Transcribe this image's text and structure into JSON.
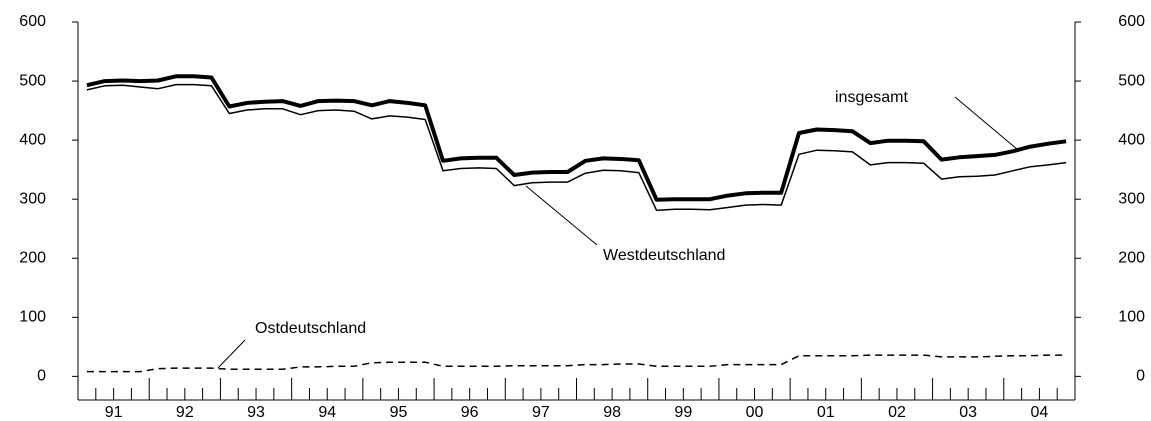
{
  "chart_data": {
    "type": "line",
    "categories": [
      null,
      "91",
      null,
      null,
      null,
      "92",
      null,
      null,
      null,
      "93",
      null,
      null,
      null,
      "94",
      null,
      null,
      null,
      "95",
      null,
      null,
      null,
      "96",
      null,
      null,
      null,
      "97",
      null,
      null,
      null,
      "98",
      null,
      null,
      null,
      "99",
      null,
      null,
      null,
      "00",
      null,
      null,
      null,
      "01",
      null,
      null,
      null,
      "02",
      null,
      null,
      null,
      "03",
      null,
      null,
      null,
      "04",
      null,
      null
    ],
    "series": [
      {
        "name": "insgesamt",
        "color": "#000000",
        "values": [
          493,
          500,
          501,
          500,
          501,
          508,
          508,
          506,
          457,
          463,
          465,
          466,
          458,
          466,
          467,
          466,
          459,
          466,
          463,
          459,
          365,
          369,
          370,
          370,
          341,
          345,
          346,
          346,
          365,
          369,
          368,
          366,
          299,
          300,
          300,
          300,
          306,
          310,
          311,
          311,
          412,
          418,
          417,
          415,
          395,
          399,
          399,
          398,
          367,
          371,
          373,
          375,
          381,
          389,
          394,
          398
        ]
      },
      {
        "name": "Westdeutschland",
        "color": "#000000",
        "values": [
          485,
          492,
          493,
          490,
          487,
          494,
          494,
          492,
          445,
          451,
          453,
          453,
          443,
          450,
          451,
          449,
          436,
          441,
          439,
          435,
          348,
          352,
          353,
          352,
          323,
          328,
          329,
          329,
          344,
          349,
          348,
          345,
          281,
          283,
          283,
          282,
          286,
          290,
          291,
          290,
          376,
          383,
          382,
          380,
          358,
          362,
          362,
          361,
          334,
          338,
          339,
          341,
          348,
          355,
          358,
          362
        ]
      },
      {
        "name": "Ostdeutschland",
        "color": "#000000",
        "dashed": true,
        "values": [
          8,
          8,
          8,
          8,
          13,
          14,
          14,
          14,
          12,
          12,
          12,
          12,
          16,
          16,
          17,
          17,
          23,
          24,
          24,
          24,
          17,
          17,
          17,
          17,
          18,
          18,
          18,
          18,
          20,
          20,
          21,
          21,
          17,
          17,
          17,
          17,
          20,
          20,
          20,
          20,
          35,
          35,
          35,
          35,
          36,
          36,
          36,
          36,
          33,
          33,
          33,
          34,
          35,
          35,
          36,
          36
        ]
      }
    ],
    "ylim": [
      -40,
      600
    ],
    "yticks": [
      0,
      100,
      200,
      300,
      400,
      500,
      600
    ],
    "y2lim": [
      -40,
      600
    ],
    "y2ticks": [
      0,
      100,
      200,
      300,
      400,
      500,
      600
    ],
    "grid": false
  }
}
